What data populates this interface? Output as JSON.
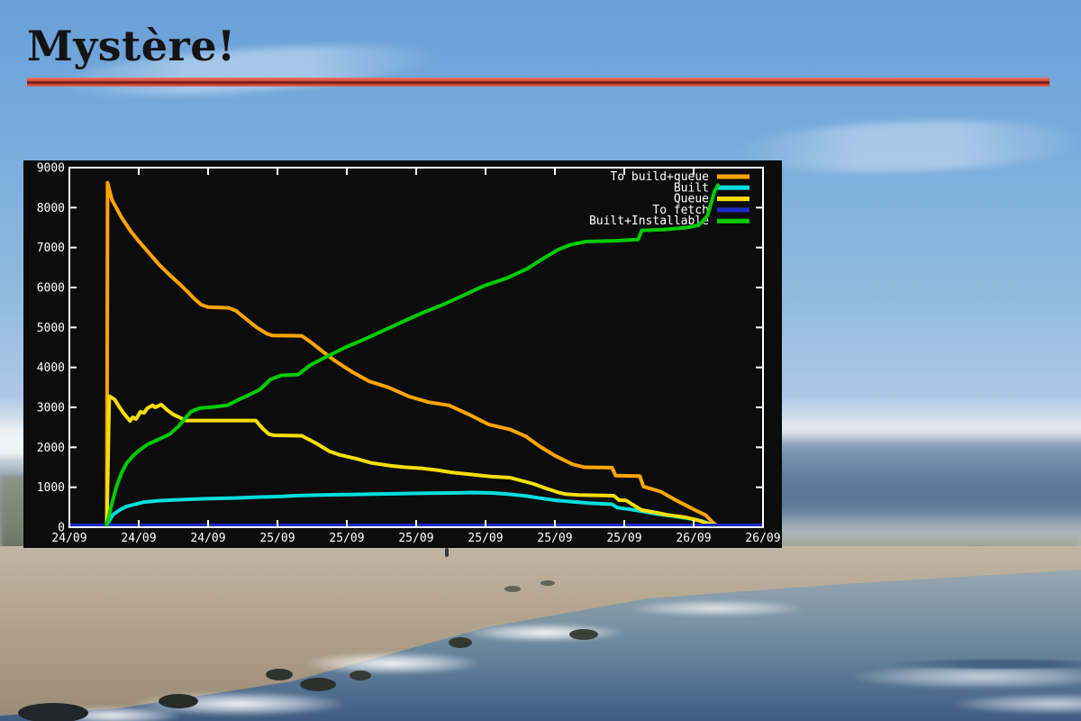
{
  "slide": {
    "title": "Mystère!",
    "accent_color": "#c0392b",
    "background_scene": "beach with sky, clouds, sand and sea"
  },
  "chart": {
    "background": "#0c0c0c",
    "text_color": "#ffffff",
    "x_tick_labels": [
      "24/09",
      "24/09",
      "24/09",
      "25/09",
      "25/09",
      "25/09",
      "25/09",
      "25/09",
      "25/09",
      "26/09",
      "26/09"
    ],
    "y_tick_labels": [
      "0",
      "1000",
      "2000",
      "3000",
      "4000",
      "5000",
      "6000",
      "7000",
      "8000",
      "9000"
    ],
    "legend": [
      "To build+queue",
      "Built",
      "Queue",
      "To fetch",
      "Built+Installable"
    ]
  },
  "chart_data": {
    "type": "line",
    "title": "",
    "xlabel": "",
    "ylabel": "",
    "grid": false,
    "legend_position": "top-right",
    "x_axis": {
      "unit": "hours since 24/09 12:00",
      "range": [
        0,
        40
      ],
      "tick_interval_hours": 4
    },
    "y_axis": {
      "range": [
        0,
        9000
      ],
      "tick_interval": 1000
    },
    "series": [
      {
        "name": "To build+queue",
        "color": "#ffa500",
        "points": [
          [
            2.16,
            0
          ],
          [
            2.2,
            8620
          ],
          [
            2.45,
            8200
          ],
          [
            2.7,
            8000
          ],
          [
            3.0,
            7760
          ],
          [
            3.5,
            7430
          ],
          [
            4.0,
            7160
          ],
          [
            4.6,
            6860
          ],
          [
            5.2,
            6560
          ],
          [
            5.8,
            6310
          ],
          [
            6.3,
            6110
          ],
          [
            6.8,
            5900
          ],
          [
            7.2,
            5720
          ],
          [
            7.6,
            5570
          ],
          [
            8.0,
            5510
          ],
          [
            9.2,
            5490
          ],
          [
            9.6,
            5420
          ],
          [
            10.2,
            5210
          ],
          [
            10.8,
            5000
          ],
          [
            11.4,
            4840
          ],
          [
            11.7,
            4800
          ],
          [
            13.4,
            4790
          ],
          [
            13.9,
            4640
          ],
          [
            14.6,
            4400
          ],
          [
            15.3,
            4170
          ],
          [
            16.3,
            3890
          ],
          [
            17.3,
            3650
          ],
          [
            18.4,
            3500
          ],
          [
            19.6,
            3270
          ],
          [
            20.7,
            3130
          ],
          [
            21.9,
            3050
          ],
          [
            23.1,
            2810
          ],
          [
            24.2,
            2570
          ],
          [
            25.4,
            2450
          ],
          [
            26.3,
            2280
          ],
          [
            27.1,
            2030
          ],
          [
            28.0,
            1790
          ],
          [
            29.0,
            1580
          ],
          [
            29.7,
            1500
          ],
          [
            31.3,
            1490
          ],
          [
            31.5,
            1290
          ],
          [
            32.9,
            1280
          ],
          [
            33.1,
            1020
          ],
          [
            34.1,
            890
          ],
          [
            35.0,
            670
          ],
          [
            36.0,
            450
          ],
          [
            36.7,
            300
          ],
          [
            37.05,
            140
          ],
          [
            37.3,
            0
          ]
        ]
      },
      {
        "name": "Built",
        "color": "#00dede",
        "points": [
          [
            2.16,
            0
          ],
          [
            2.5,
            310
          ],
          [
            2.9,
            430
          ],
          [
            3.3,
            520
          ],
          [
            4.3,
            630
          ],
          [
            5.2,
            665
          ],
          [
            6.5,
            690
          ],
          [
            8.0,
            715
          ],
          [
            9.5,
            730
          ],
          [
            11.0,
            755
          ],
          [
            12.2,
            770
          ],
          [
            13.0,
            790
          ],
          [
            14.5,
            805
          ],
          [
            16.0,
            818
          ],
          [
            17.5,
            828
          ],
          [
            19.0,
            840
          ],
          [
            20.5,
            850
          ],
          [
            22.0,
            858
          ],
          [
            23.3,
            868
          ],
          [
            24.3,
            860
          ],
          [
            25.3,
            830
          ],
          [
            26.3,
            785
          ],
          [
            27.2,
            725
          ],
          [
            28.1,
            670
          ],
          [
            29.0,
            635
          ],
          [
            30.1,
            600
          ],
          [
            31.3,
            575
          ],
          [
            31.6,
            490
          ],
          [
            32.4,
            445
          ],
          [
            33.0,
            400
          ],
          [
            33.9,
            330
          ],
          [
            34.8,
            280
          ],
          [
            35.8,
            215
          ],
          [
            36.4,
            165
          ],
          [
            36.9,
            90
          ],
          [
            37.1,
            0
          ]
        ]
      },
      {
        "name": "Queue",
        "color": "#f5df00",
        "points": [
          [
            2.16,
            0
          ],
          [
            2.3,
            3280
          ],
          [
            2.6,
            3200
          ],
          [
            2.9,
            3000
          ],
          [
            3.1,
            2870
          ],
          [
            3.5,
            2660
          ],
          [
            3.65,
            2750
          ],
          [
            3.85,
            2710
          ],
          [
            4.1,
            2890
          ],
          [
            4.3,
            2860
          ],
          [
            4.5,
            2980
          ],
          [
            4.8,
            3050
          ],
          [
            4.95,
            3000
          ],
          [
            5.3,
            3070
          ],
          [
            5.65,
            2930
          ],
          [
            6.0,
            2820
          ],
          [
            6.35,
            2750
          ],
          [
            6.7,
            2670
          ],
          [
            10.75,
            2670
          ],
          [
            11.1,
            2490
          ],
          [
            11.5,
            2330
          ],
          [
            11.8,
            2300
          ],
          [
            13.4,
            2290
          ],
          [
            14.2,
            2110
          ],
          [
            15.0,
            1900
          ],
          [
            15.6,
            1810
          ],
          [
            16.5,
            1720
          ],
          [
            17.4,
            1610
          ],
          [
            18.5,
            1540
          ],
          [
            19.4,
            1500
          ],
          [
            20.4,
            1470
          ],
          [
            21.2,
            1430
          ],
          [
            22.1,
            1370
          ],
          [
            23.2,
            1320
          ],
          [
            24.3,
            1270
          ],
          [
            25.4,
            1240
          ],
          [
            26.2,
            1150
          ],
          [
            26.8,
            1080
          ],
          [
            27.5,
            970
          ],
          [
            28.2,
            870
          ],
          [
            28.6,
            830
          ],
          [
            29.4,
            805
          ],
          [
            31.4,
            790
          ],
          [
            31.7,
            680
          ],
          [
            32.1,
            670
          ],
          [
            33.0,
            430
          ],
          [
            33.9,
            360
          ],
          [
            34.5,
            310
          ],
          [
            35.5,
            250
          ],
          [
            36.2,
            180
          ],
          [
            36.9,
            80
          ],
          [
            37.2,
            0
          ]
        ]
      },
      {
        "name": "To fetch",
        "color": "#1c2bc8",
        "points": [
          [
            0,
            0
          ],
          [
            40,
            0
          ]
        ]
      },
      {
        "name": "Built+Installable",
        "color": "#00cc00",
        "points": [
          [
            2.16,
            0
          ],
          [
            2.4,
            500
          ],
          [
            2.7,
            1000
          ],
          [
            3.0,
            1350
          ],
          [
            3.3,
            1600
          ],
          [
            3.7,
            1800
          ],
          [
            4.1,
            1950
          ],
          [
            4.5,
            2070
          ],
          [
            5.1,
            2190
          ],
          [
            5.8,
            2330
          ],
          [
            6.3,
            2530
          ],
          [
            7.0,
            2890
          ],
          [
            7.5,
            2980
          ],
          [
            8.3,
            3010
          ],
          [
            9.1,
            3050
          ],
          [
            9.8,
            3200
          ],
          [
            10.5,
            3340
          ],
          [
            11.0,
            3450
          ],
          [
            11.6,
            3700
          ],
          [
            12.2,
            3800
          ],
          [
            13.2,
            3820
          ],
          [
            13.9,
            4060
          ],
          [
            14.8,
            4260
          ],
          [
            15.9,
            4500
          ],
          [
            17.1,
            4720
          ],
          [
            18.3,
            4960
          ],
          [
            19.5,
            5200
          ],
          [
            20.5,
            5390
          ],
          [
            21.6,
            5580
          ],
          [
            22.7,
            5800
          ],
          [
            23.9,
            6040
          ],
          [
            25.2,
            6230
          ],
          [
            26.4,
            6470
          ],
          [
            27.3,
            6720
          ],
          [
            28.2,
            6950
          ],
          [
            28.9,
            7070
          ],
          [
            29.8,
            7150
          ],
          [
            31.5,
            7170
          ],
          [
            32.8,
            7200
          ],
          [
            33.0,
            7430
          ],
          [
            34.3,
            7450
          ],
          [
            35.6,
            7500
          ],
          [
            36.3,
            7560
          ],
          [
            36.8,
            7800
          ],
          [
            37.0,
            8100
          ],
          [
            37.2,
            8400
          ],
          [
            37.4,
            8560
          ]
        ]
      }
    ]
  }
}
